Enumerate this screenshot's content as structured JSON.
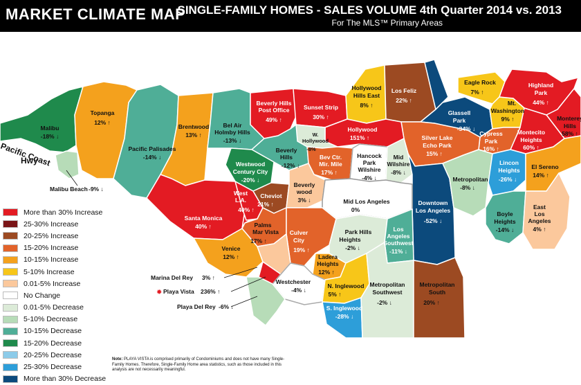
{
  "header": {
    "title": "MARKET CLIMATE MAP",
    "subtitle": "SINGLE-FAMILY HOMES  -  SALES VOLUME 4th Quarter 2014 vs. 2013",
    "subtitle2": "For The MLS™ Primary Areas"
  },
  "highway_label_1": "Pacific Coast",
  "highway_label_2": "Hwy",
  "areas": {
    "malibu": {
      "name": "Malibu",
      "value": "-18% ↓"
    },
    "malibu_beach": {
      "name": "Malibu Beach",
      "value": "-9% ↓"
    },
    "topanga": {
      "name": "Topanga",
      "value": "12% ↑"
    },
    "pacific_palisades": {
      "name": "Pacific Palisades",
      "value": "-14% ↓"
    },
    "brentwood": {
      "name": "Brentwood",
      "value": "13% ↑"
    },
    "bel_air": {
      "name1": "Bel Air",
      "name2": "Holmby Hills",
      "value": "-13% ↓"
    },
    "bh_post_office": {
      "name1": "Beverly Hills",
      "name2": "Post Office",
      "value": "49% ↑"
    },
    "sunset_strip": {
      "name": "Sunset Strip",
      "value": "30% ↑"
    },
    "hollywood_hills_east": {
      "name1": "Hollywood",
      "name2": "Hills East",
      "value": "8% ↑"
    },
    "los_feliz": {
      "name": "Los Feliz",
      "value": "22% ↑"
    },
    "eagle_rock": {
      "name": "Eagle Rock",
      "value": "7% ↑"
    },
    "highland_park": {
      "name1": "Highland",
      "name2": "Park",
      "value": "44% ↑"
    },
    "mt_washington": {
      "name1": "Mt.",
      "name2": "Washington",
      "value": "9% ↑"
    },
    "glassell_park": {
      "name1": "Glassell",
      "name2": "Park",
      "value": "-34% ↓"
    },
    "monterey_hills": {
      "name1": "Monterey",
      "name2": "Hills",
      "value": "58% ↑"
    },
    "montecito_heights": {
      "name1": "Montecito",
      "name2": "Heights",
      "value": "60% ↑"
    },
    "cypress_park": {
      "name1": "Cypress",
      "name2": "Park",
      "value": "16% ↑"
    },
    "silver_lake": {
      "name1": "Silver Lake",
      "name2": "Echo Park",
      "value": "15% ↑"
    },
    "hollywood": {
      "name": "Hollywood",
      "value": "151% ↑"
    },
    "w_hollywood": {
      "name1": "W.",
      "name2": "Hollywood",
      "value": "-8%"
    },
    "beverly_hills": {
      "name1": "Beverly",
      "name2": "Hills",
      "value": "-12% ↓"
    },
    "westwood": {
      "name1": "Westwood",
      "name2": "Century City",
      "value": "-20% ↓"
    },
    "bev_ctr": {
      "name1": "Bev Ctr.",
      "name2": "Mir. Mile",
      "value": "17% ↑"
    },
    "hancock_park": {
      "name1": "Hancock",
      "name2": "Park",
      "name3": "Wilshire",
      "value": "-4% ↓"
    },
    "mid_wilshire": {
      "name1": "Mid",
      "name2": "Wilshire",
      "value": "-8% ↓"
    },
    "metropolitan": {
      "name": "Metropolitan",
      "value": "-8% ↓"
    },
    "lincoln_heights": {
      "name1": "Lincon",
      "name2": "Heights",
      "value": "-26% ↓"
    },
    "el_sereno": {
      "name": "El Sereno",
      "value": "14% ↑"
    },
    "santa_monica": {
      "name": "Santa Monica",
      "value": "40% ↑"
    },
    "west_la": {
      "name1": "West",
      "name2": "L.A.",
      "value": "40% ↑"
    },
    "cheviot": {
      "name": "Cheviot",
      "value": "21% ↑"
    },
    "beverlywood": {
      "name1": "Beverly",
      "name2": "wood",
      "value": "3% ↓"
    },
    "mid_los_angeles": {
      "name": "Mid Los Angeles",
      "value": "0%"
    },
    "downtown": {
      "name1": "Downtown",
      "name2": "Los Angeles",
      "value": "-52% ↓"
    },
    "boyle_heights": {
      "name1": "Boyle",
      "name2": "Heights",
      "value": "-14% ↓"
    },
    "east_la": {
      "name1": "East",
      "name2": "Los",
      "name3": "Angeles",
      "value": "4% ↑"
    },
    "palms": {
      "name1": "Palms",
      "name2": "Mar Vista",
      "value": "17% ↑"
    },
    "culver_city": {
      "name1": "Culver",
      "name2": "City",
      "value": "19% ↑"
    },
    "park_hills": {
      "name1": "Park Hills",
      "name2": "Heights",
      "value": "-2% ↓"
    },
    "la_southwest": {
      "name1": "Los",
      "name2": "Angeles",
      "name3": "Southwest",
      "value": "-11% ↓"
    },
    "venice": {
      "name": "Venice",
      "value": "12% ↑"
    },
    "ladera": {
      "name1": "Ladera",
      "name2": "Heights",
      "value": "12% ↑"
    },
    "westchester": {
      "name": "Westchester",
      "value": "-4% ↓"
    },
    "n_inglewood": {
      "name": "N. Inglewood",
      "value": "5% ↑"
    },
    "s_inglewood": {
      "name": "S. Inglewood",
      "value": "-28% ↓"
    },
    "metro_southwest": {
      "name1": "Metropolitan",
      "name2": "Southwest",
      "value": "-2% ↓"
    },
    "metro_south": {
      "name1": "Metropolitan",
      "name2": "South",
      "value": "20% ↑"
    },
    "marina_del_rey": {
      "name": "Marina Del Rey",
      "value": "3% ↑"
    },
    "playa_vista": {
      "name": "Playa Vista",
      "value": "236% ↑"
    },
    "playa_del_rey": {
      "name": "Playa Del Rey",
      "value": "-6% ↓"
    }
  },
  "legend": [
    {
      "label": "More than 30% Increase",
      "color": "#e31b23"
    },
    {
      "label": "25-30% Increase",
      "color": "#7a1517"
    },
    {
      "label": "20-25% Increase",
      "color": "#9c4a22"
    },
    {
      "label": "15-20% Increase",
      "color": "#e2632a"
    },
    {
      "label": "10-15% Increase",
      "color": "#f4a11d"
    },
    {
      "label": "5-10% Increase",
      "color": "#f7c619"
    },
    {
      "label": "0.01-5% Increase",
      "color": "#fbc89c"
    },
    {
      "label": "No Change",
      "color": "#ffffff"
    },
    {
      "label": "0.01-5% Decrease",
      "color": "#dcebd8"
    },
    {
      "label": "5-10% Decrease",
      "color": "#b7dcb8"
    },
    {
      "label": "10-15% Decrease",
      "color": "#4fae97"
    },
    {
      "label": "15-20% Decrease",
      "color": "#1f8a4c"
    },
    {
      "label": "20-25% Decrease",
      "color": "#8ccbe9"
    },
    {
      "label": "25-30% Decrease",
      "color": "#2d9ed9"
    },
    {
      "label": "More than 30% Decrease",
      "color": "#0c4a7c"
    }
  ],
  "note_bold": "Note:",
  "note_text": "PLAYA VISTA is comprised primarily of Condominiums and does not have many Single-Family Homes. Therefore, Single-Family Home area statistics, such as those included in this analysis are not necessarily meaningful."
}
